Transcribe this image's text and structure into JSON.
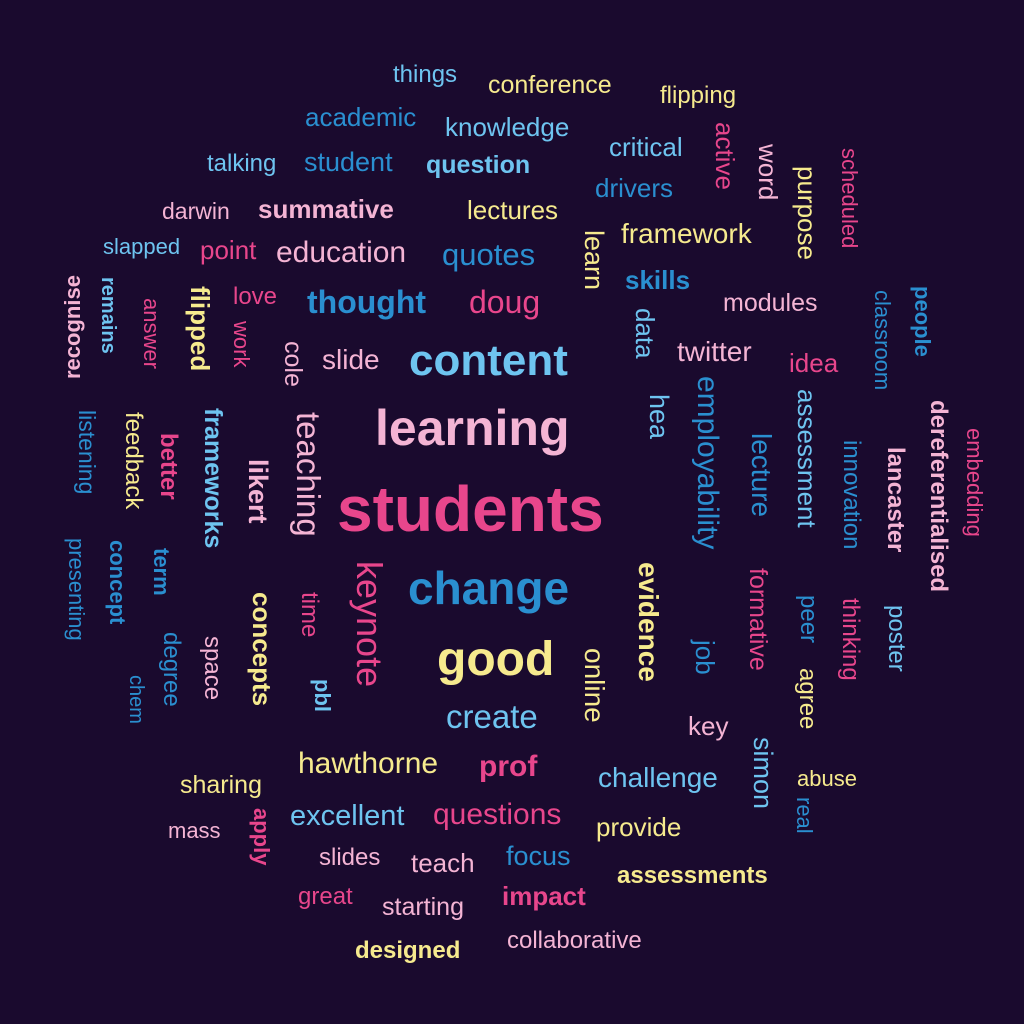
{
  "palette": {
    "background": "#1a0a2e",
    "pink": "#e8468c",
    "lightpink": "#f4b4d4",
    "blue": "#2a8fd0",
    "lightblue": "#6ec4f0",
    "yellow": "#f6ea8e"
  },
  "words": [
    {
      "text": "things",
      "color": "#6ec4f0",
      "weight": "normal"
    },
    {
      "text": "conference",
      "color": "#f6ea8e",
      "weight": "normal"
    },
    {
      "text": "flipping",
      "color": "#f6ea8e",
      "weight": "normal"
    },
    {
      "text": "academic",
      "color": "#2a8fd0",
      "weight": "normal"
    },
    {
      "text": "knowledge",
      "color": "#6ec4f0",
      "weight": "normal"
    },
    {
      "text": "critical",
      "color": "#6ec4f0",
      "weight": "normal"
    },
    {
      "text": "active",
      "color": "#e8468c",
      "weight": "normal"
    },
    {
      "text": "word",
      "color": "#f4b4d4",
      "weight": "normal"
    },
    {
      "text": "scheduled",
      "color": "#e8468c",
      "weight": "normal"
    },
    {
      "text": "purpose",
      "color": "#f6ea8e",
      "weight": "normal"
    },
    {
      "text": "talking",
      "color": "#6ec4f0",
      "weight": "normal"
    },
    {
      "text": "student",
      "color": "#2a8fd0",
      "weight": "normal"
    },
    {
      "text": "question",
      "color": "#6ec4f0",
      "weight": "bold"
    },
    {
      "text": "drivers",
      "color": "#2a8fd0",
      "weight": "normal"
    },
    {
      "text": "darwin",
      "color": "#f4b4d4",
      "weight": "normal"
    },
    {
      "text": "summative",
      "color": "#f4b4d4",
      "weight": "bold"
    },
    {
      "text": "lectures",
      "color": "#f6ea8e",
      "weight": "normal"
    },
    {
      "text": "framework",
      "color": "#f6ea8e",
      "weight": "normal"
    },
    {
      "text": "slapped",
      "color": "#6ec4f0",
      "weight": "normal"
    },
    {
      "text": "point",
      "color": "#e8468c",
      "weight": "normal"
    },
    {
      "text": "education",
      "color": "#f4b4d4",
      "weight": "normal"
    },
    {
      "text": "quotes",
      "color": "#2a8fd0",
      "weight": "normal"
    },
    {
      "text": "learn",
      "color": "#f6ea8e",
      "weight": "normal"
    },
    {
      "text": "skills",
      "color": "#2a8fd0",
      "weight": "bold"
    },
    {
      "text": "remains",
      "color": "#6ec4f0",
      "weight": "bold"
    },
    {
      "text": "answer",
      "color": "#e8468c",
      "weight": "normal"
    },
    {
      "text": "flipped",
      "color": "#f6ea8e",
      "weight": "bold"
    },
    {
      "text": "love",
      "color": "#e8468c",
      "weight": "normal"
    },
    {
      "text": "thought",
      "color": "#2a8fd0",
      "weight": "bold"
    },
    {
      "text": "doug",
      "color": "#e8468c",
      "weight": "normal"
    },
    {
      "text": "data",
      "color": "#6ec4f0",
      "weight": "normal"
    },
    {
      "text": "modules",
      "color": "#f4b4d4",
      "weight": "normal"
    },
    {
      "text": "classroom",
      "color": "#2a8fd0",
      "weight": "normal"
    },
    {
      "text": "people",
      "color": "#2a8fd0",
      "weight": "bold"
    },
    {
      "text": "work",
      "color": "#e8468c",
      "weight": "normal"
    },
    {
      "text": "cole",
      "color": "#f4b4d4",
      "weight": "normal"
    },
    {
      "text": "slide",
      "color": "#f4b4d4",
      "weight": "normal"
    },
    {
      "text": "content",
      "color": "#6ec4f0",
      "weight": "bold"
    },
    {
      "text": "twitter",
      "color": "#f4b4d4",
      "weight": "normal"
    },
    {
      "text": "idea",
      "color": "#e8468c",
      "weight": "normal"
    },
    {
      "text": "recognise",
      "color": "#f4b4d4",
      "weight": "bold"
    },
    {
      "text": "listening",
      "color": "#2a8fd0",
      "weight": "normal"
    },
    {
      "text": "feedback",
      "color": "#f6ea8e",
      "weight": "normal"
    },
    {
      "text": "better",
      "color": "#e8468c",
      "weight": "bold"
    },
    {
      "text": "frameworks",
      "color": "#6ec4f0",
      "weight": "bold"
    },
    {
      "text": "teaching",
      "color": "#f4b4d4",
      "weight": "normal"
    },
    {
      "text": "learning",
      "color": "#f4b4d4",
      "weight": "bold"
    },
    {
      "text": "hea",
      "color": "#6ec4f0",
      "weight": "normal"
    },
    {
      "text": "employability",
      "color": "#2a8fd0",
      "weight": "normal"
    },
    {
      "text": "assessment",
      "color": "#6ec4f0",
      "weight": "normal"
    },
    {
      "text": "innovation",
      "color": "#2a8fd0",
      "weight": "normal"
    },
    {
      "text": "dereferentialised",
      "color": "#f4b4d4",
      "weight": "bold"
    },
    {
      "text": "embedding",
      "color": "#e8468c",
      "weight": "normal"
    },
    {
      "text": "likert",
      "color": "#f4b4d4",
      "weight": "bold"
    },
    {
      "text": "lancaster",
      "color": "#f4b4d4",
      "weight": "bold"
    },
    {
      "text": "lecture",
      "color": "#2a8fd0",
      "weight": "normal"
    },
    {
      "text": "presenting",
      "color": "#2a8fd0",
      "weight": "normal"
    },
    {
      "text": "concept",
      "color": "#2a8fd0",
      "weight": "bold"
    },
    {
      "text": "term",
      "color": "#2a8fd0",
      "weight": "bold"
    },
    {
      "text": "students",
      "color": "#e8468c",
      "weight": "bold"
    },
    {
      "text": "keynote",
      "color": "#e8468c",
      "weight": "normal"
    },
    {
      "text": "time",
      "color": "#e8468c",
      "weight": "normal"
    },
    {
      "text": "concepts",
      "color": "#f6ea8e",
      "weight": "bold"
    },
    {
      "text": "change",
      "color": "#2a8fd0",
      "weight": "bold"
    },
    {
      "text": "evidence",
      "color": "#f6ea8e",
      "weight": "bold"
    },
    {
      "text": "formative",
      "color": "#e8468c",
      "weight": "normal"
    },
    {
      "text": "thinking",
      "color": "#e8468c",
      "weight": "normal"
    },
    {
      "text": "poster",
      "color": "#6ec4f0",
      "weight": "normal"
    },
    {
      "text": "job",
      "color": "#2a8fd0",
      "weight": "normal"
    },
    {
      "text": "peer",
      "color": "#2a8fd0",
      "weight": "normal"
    },
    {
      "text": "agree",
      "color": "#f6ea8e",
      "weight": "normal"
    },
    {
      "text": "chem",
      "color": "#2a8fd0",
      "weight": "normal"
    },
    {
      "text": "degree",
      "color": "#2a8fd0",
      "weight": "normal"
    },
    {
      "text": "space",
      "color": "#f4b4d4",
      "weight": "normal"
    },
    {
      "text": "pbl",
      "color": "#6ec4f0",
      "weight": "bold"
    },
    {
      "text": "good",
      "color": "#f6ea8e",
      "weight": "bold"
    },
    {
      "text": "online",
      "color": "#f6ea8e",
      "weight": "normal"
    },
    {
      "text": "create",
      "color": "#6ec4f0",
      "weight": "normal"
    },
    {
      "text": "key",
      "color": "#f4b4d4",
      "weight": "normal"
    },
    {
      "text": "simon",
      "color": "#6ec4f0",
      "weight": "normal"
    },
    {
      "text": "hawthorne",
      "color": "#f6ea8e",
      "weight": "normal"
    },
    {
      "text": "prof",
      "color": "#e8468c",
      "weight": "bold"
    },
    {
      "text": "challenge",
      "color": "#6ec4f0",
      "weight": "normal"
    },
    {
      "text": "abuse",
      "color": "#f6ea8e",
      "weight": "normal"
    },
    {
      "text": "sharing",
      "color": "#f6ea8e",
      "weight": "normal"
    },
    {
      "text": "real",
      "color": "#2a8fd0",
      "weight": "normal"
    },
    {
      "text": "mass",
      "color": "#f4b4d4",
      "weight": "normal"
    },
    {
      "text": "apply",
      "color": "#e8468c",
      "weight": "bold"
    },
    {
      "text": "excellent",
      "color": "#6ec4f0",
      "weight": "normal"
    },
    {
      "text": "questions",
      "color": "#e8468c",
      "weight": "normal"
    },
    {
      "text": "provide",
      "color": "#f6ea8e",
      "weight": "normal"
    },
    {
      "text": "slides",
      "color": "#f4b4d4",
      "weight": "normal"
    },
    {
      "text": "teach",
      "color": "#f4b4d4",
      "weight": "normal"
    },
    {
      "text": "focus",
      "color": "#2a8fd0",
      "weight": "normal"
    },
    {
      "text": "assessments",
      "color": "#f6ea8e",
      "weight": "bold"
    },
    {
      "text": "great",
      "color": "#e8468c",
      "weight": "normal"
    },
    {
      "text": "starting",
      "color": "#f4b4d4",
      "weight": "normal"
    },
    {
      "text": "impact",
      "color": "#e8468c",
      "weight": "bold"
    },
    {
      "text": "designed",
      "color": "#f6ea8e",
      "weight": "bold"
    },
    {
      "text": "collaborative",
      "color": "#f4b4d4",
      "weight": "normal"
    }
  ]
}
